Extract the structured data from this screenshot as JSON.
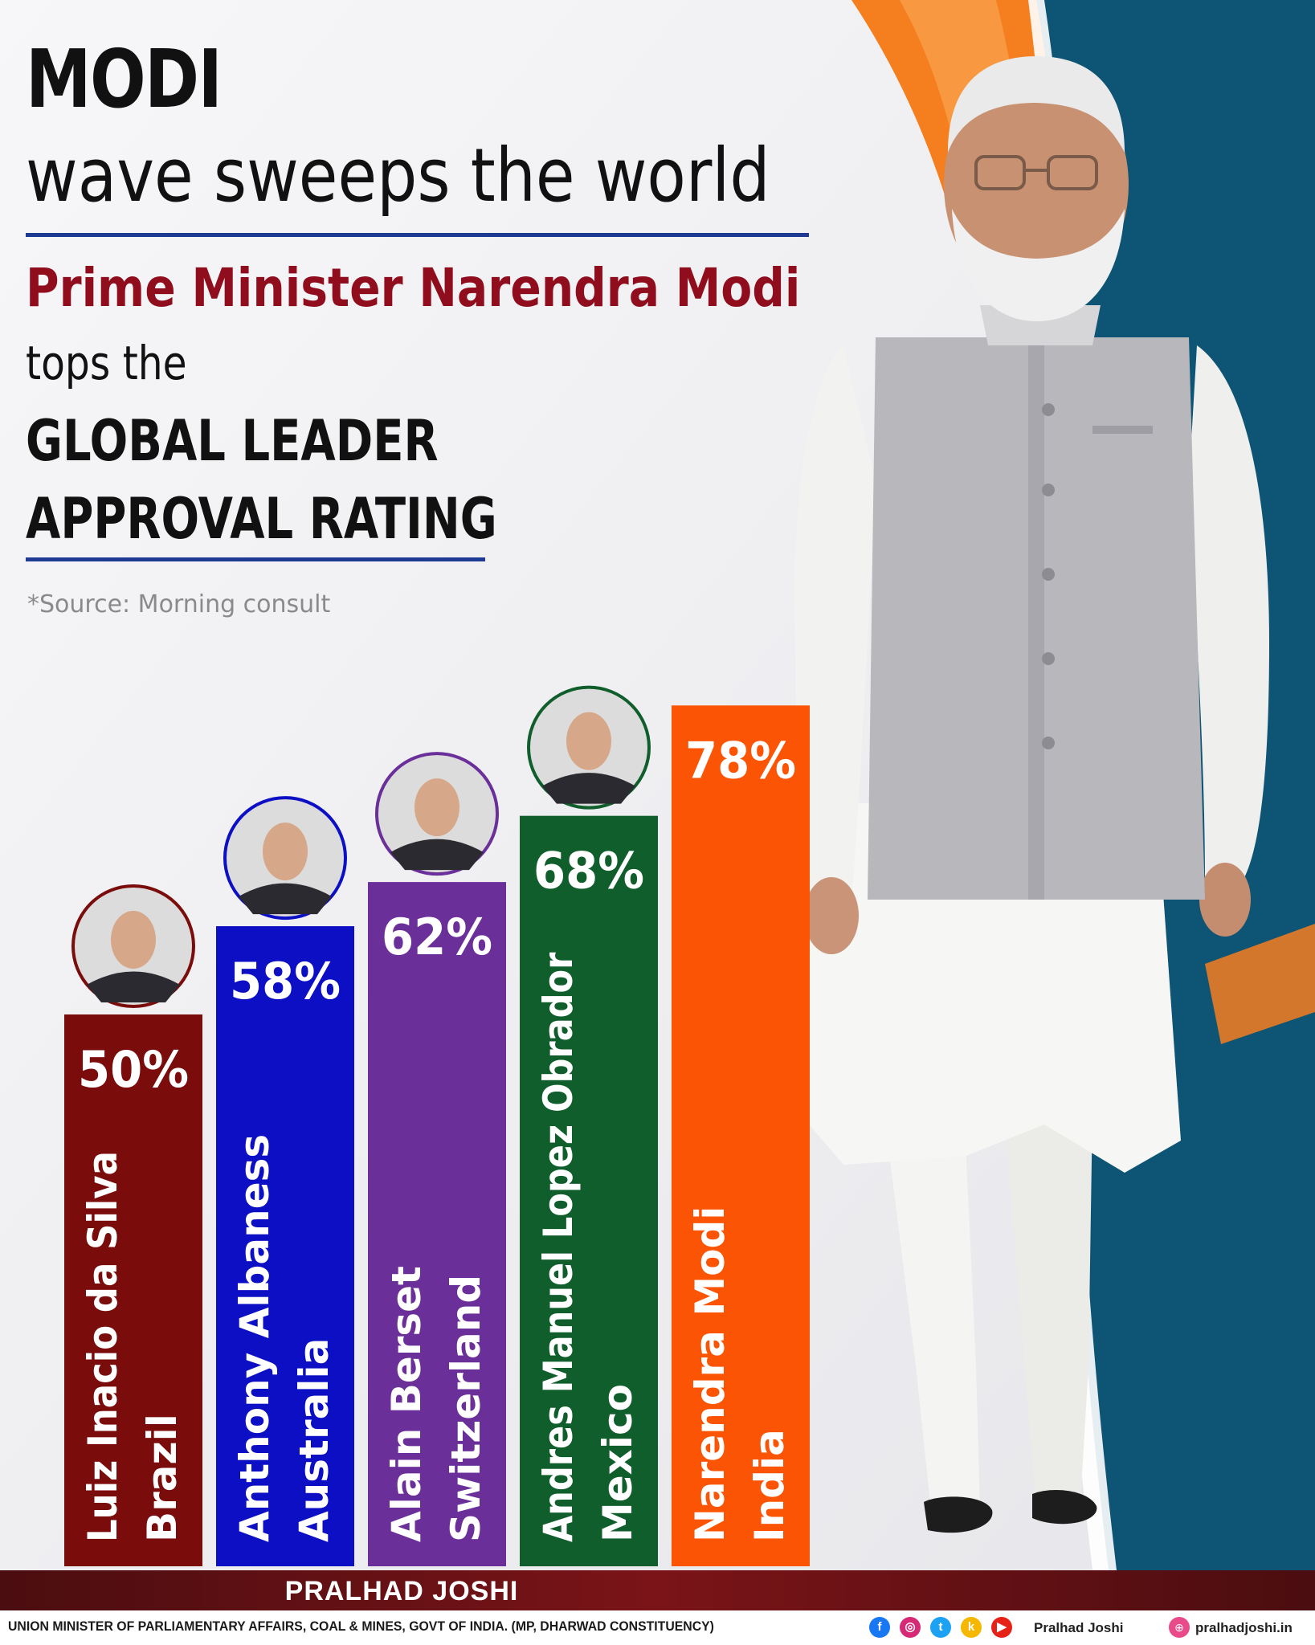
{
  "header": {
    "line1": "MODI",
    "line2": "wave sweeps the world",
    "line3": "Prime Minister Narendra Modi",
    "line4": "tops the",
    "line5": "GLOBAL LEADER",
    "line6": "APPROVAL RATING"
  },
  "source": "*Source: Morning consult",
  "chart_data": {
    "type": "bar",
    "categories": [
      "Luiz Inacio da Silva",
      "Anthony Albaness",
      "Alain Berset",
      "Andres Manuel Lopez Obrador",
      "Narendra Modi"
    ],
    "countries": [
      "Brazil",
      "Australia",
      "Switzerland",
      "Mexico",
      "India"
    ],
    "values": [
      50,
      58,
      62,
      68,
      78
    ],
    "value_labels": [
      "50%",
      "58%",
      "62%",
      "68%",
      "78%"
    ],
    "colors": [
      "#7a0c0c",
      "#0c0fc4",
      "#6b2f9a",
      "#0f5e2b",
      "#fb5404"
    ],
    "unit": "%",
    "ylim": [
      0,
      100
    ],
    "grid": false,
    "legend": "none"
  },
  "footer": {
    "name": "PRALHAD JOSHI",
    "subtitle": "UNION MINISTER OF PARLIAMENTARY AFFAIRS, COAL & MINES, GOVT OF INDIA. (MP, DHARWAD CONSTITUENCY)",
    "handle": "Pralhad Joshi",
    "website": "pralhadjoshi.in",
    "social_icons": [
      "facebook-icon",
      "instagram-icon",
      "twitter-icon",
      "koo-icon",
      "youtube-icon"
    ]
  }
}
